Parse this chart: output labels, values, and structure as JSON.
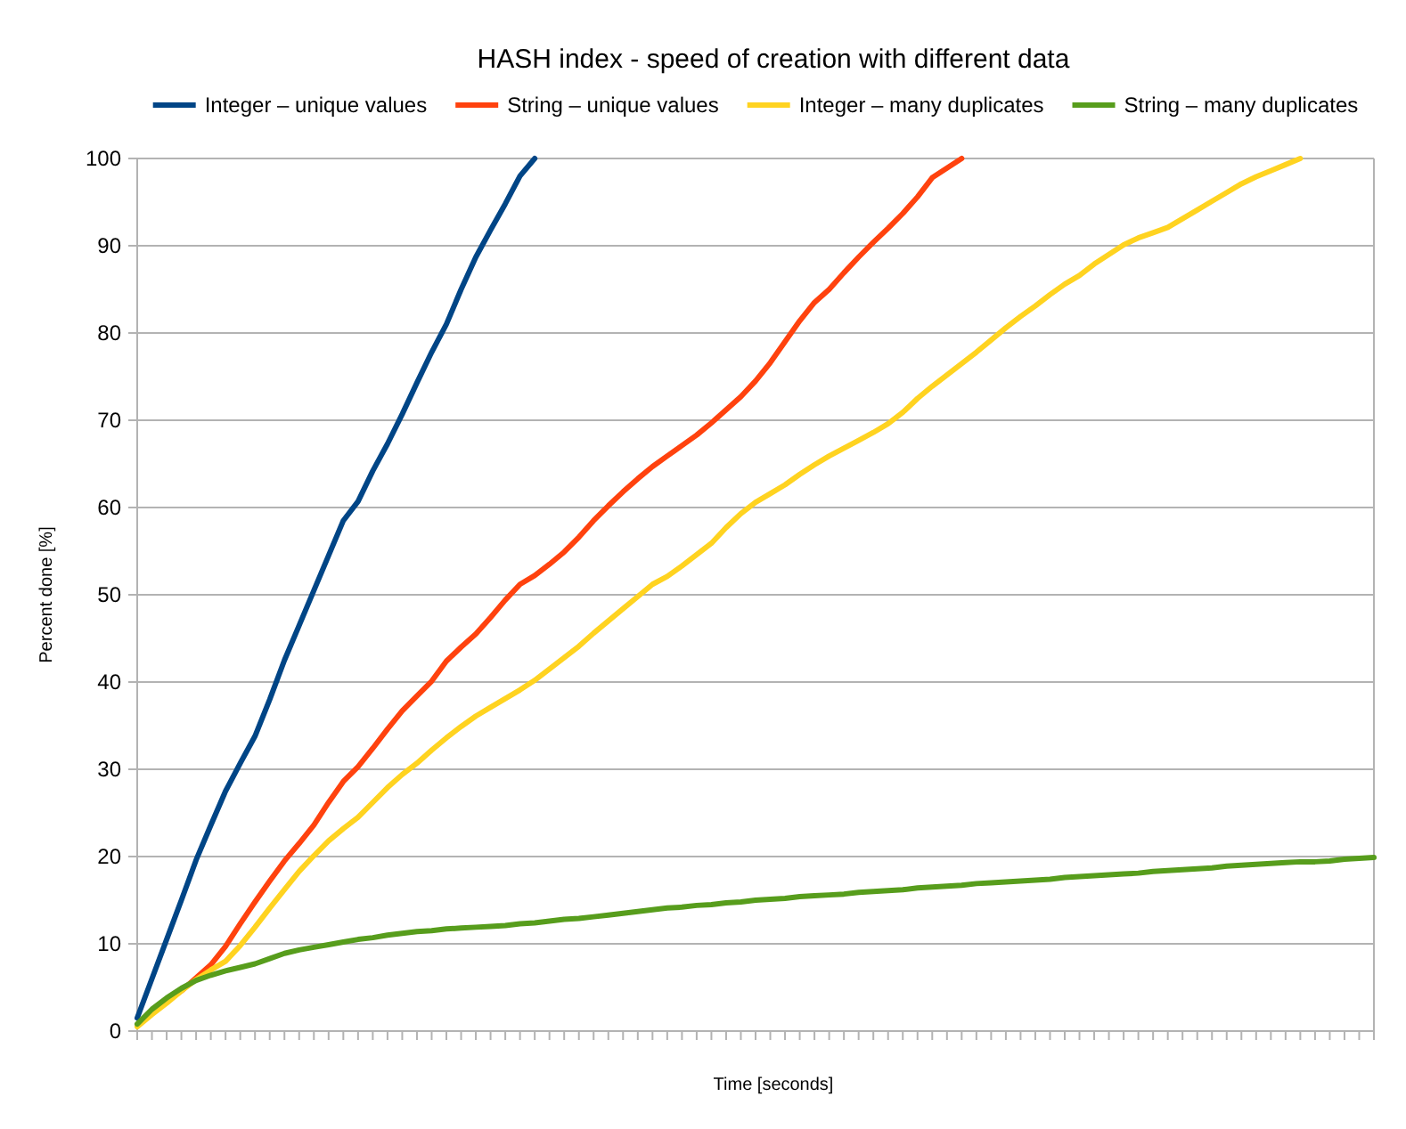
{
  "chart_data": {
    "type": "line",
    "title": "HASH index - speed of creation with different data",
    "xlabel": "Time [seconds]",
    "ylabel": "Percent done [%]",
    "categories": [
      null,
      null,
      null,
      null,
      null,
      null,
      null,
      null,
      null,
      null,
      null,
      null,
      null,
      null,
      null,
      null,
      null,
      null,
      null,
      null,
      null,
      null,
      null,
      null,
      null,
      null,
      null,
      null,
      null,
      null,
      null,
      null,
      null,
      null,
      null,
      null,
      null,
      null,
      null,
      null,
      null,
      null,
      null,
      null,
      null,
      null,
      null,
      null,
      null,
      null,
      null,
      null,
      null,
      null,
      null,
      null,
      null,
      null,
      null,
      null,
      null,
      null,
      null,
      null,
      null,
      null,
      null,
      null,
      null,
      null,
      null,
      null,
      null,
      null,
      null,
      null,
      null,
      null,
      null,
      null,
      null,
      null,
      null,
      null,
      null
    ],
    "series": [
      {
        "name": "Integer – unique values",
        "color": "#004586",
        "values": [
          1.5,
          6,
          10.5,
          15,
          19.6,
          23.6,
          27.5,
          30.7,
          33.8,
          38,
          42.5,
          46.5,
          50.5,
          54.5,
          58.5,
          60.7,
          64.2,
          67.3,
          70.7,
          74.3,
          77.8,
          81,
          85,
          88.7,
          91.8,
          94.8,
          98,
          100,
          null,
          null,
          null,
          null,
          null,
          null,
          null,
          null,
          null,
          null,
          null,
          null,
          null,
          null,
          null,
          null,
          null,
          null,
          null,
          null,
          null,
          null,
          null,
          null,
          null,
          null,
          null,
          null,
          null,
          null,
          null,
          null,
          null,
          null,
          null,
          null,
          null,
          null,
          null,
          null,
          null,
          null,
          null,
          null,
          null,
          null,
          null,
          null,
          null,
          null,
          null,
          null,
          null,
          null,
          null,
          null,
          null
        ]
      },
      {
        "name": "String – unique values",
        "color": "#ff420e",
        "values": [
          null,
          null,
          3.4,
          4.6,
          6.1,
          7.6,
          9.7,
          12.3,
          14.8,
          17.2,
          19.5,
          21.5,
          23.6,
          26.2,
          28.6,
          30.3,
          32.4,
          34.6,
          36.7,
          38.4,
          40.1,
          42.4,
          44,
          45.5,
          47.4,
          49.4,
          51.2,
          52.2,
          53.5,
          54.9,
          56.6,
          58.5,
          60.2,
          61.8,
          63.3,
          64.7,
          65.9,
          67.1,
          68.3,
          69.7,
          71.2,
          72.7,
          74.5,
          76.6,
          79,
          81.4,
          83.5,
          85,
          86.9,
          88.7,
          90.4,
          92,
          93.7,
          95.6,
          97.8,
          98.9,
          100,
          null,
          null,
          null,
          null,
          null,
          null,
          null,
          null,
          null,
          null,
          null,
          null,
          null,
          null,
          null,
          null,
          null,
          null,
          null,
          null,
          null,
          null,
          null,
          null,
          null,
          null,
          null,
          null
        ]
      },
      {
        "name": "Integer – many duplicates",
        "color": "#ffd320",
        "values": [
          0.5,
          1.9,
          3.2,
          4.6,
          5.9,
          7,
          8,
          9.8,
          11.9,
          14.1,
          16.2,
          18.3,
          20.1,
          21.8,
          23.2,
          24.5,
          26.2,
          27.9,
          29.4,
          30.7,
          32.2,
          33.6,
          34.9,
          36.1,
          37.1,
          38.1,
          39.1,
          40.2,
          41.5,
          42.8,
          44.1,
          45.6,
          47,
          48.4,
          49.8,
          51.2,
          52.1,
          53.3,
          54.6,
          55.9,
          57.7,
          59.3,
          60.6,
          61.6,
          62.6,
          63.8,
          64.9,
          65.9,
          66.8,
          67.7,
          68.6,
          69.6,
          70.9,
          72.5,
          73.9,
          75.2,
          76.5,
          77.8,
          79.2,
          80.6,
          81.9,
          83.1,
          84.4,
          85.6,
          86.6,
          87.9,
          89,
          90.1,
          90.9,
          91.5,
          92.1,
          93.1,
          94.1,
          95.1,
          96.1,
          97.1,
          97.9,
          98.6,
          99.3,
          100,
          null,
          null,
          null,
          null,
          null
        ]
      },
      {
        "name": "String – many duplicates",
        "color": "#579d1c",
        "values": [
          0.8,
          2.5,
          3.8,
          4.9,
          5.8,
          6.4,
          6.9,
          7.3,
          7.7,
          8.3,
          8.9,
          9.3,
          9.6,
          9.9,
          10.2,
          10.5,
          10.7,
          11,
          11.2,
          11.4,
          11.5,
          11.7,
          11.8,
          11.9,
          12,
          12.1,
          12.3,
          12.4,
          12.6,
          12.8,
          12.9,
          13.1,
          13.3,
          13.5,
          13.7,
          13.9,
          14.1,
          14.2,
          14.4,
          14.5,
          14.7,
          14.8,
          15,
          15.1,
          15.2,
          15.4,
          15.5,
          15.6,
          15.7,
          15.9,
          16,
          16.1,
          16.2,
          16.4,
          16.5,
          16.6,
          16.7,
          16.9,
          17,
          17.1,
          17.2,
          17.3,
          17.4,
          17.6,
          17.7,
          17.8,
          17.9,
          18,
          18.1,
          18.3,
          18.4,
          18.5,
          18.6,
          18.7,
          18.9,
          19,
          19.1,
          19.2,
          19.3,
          19.4,
          19.4,
          19.5,
          19.7,
          19.8,
          19.9
        ]
      }
    ],
    "ylim": [
      0,
      100
    ],
    "yticks": [
      0,
      10,
      20,
      30,
      40,
      50,
      60,
      70,
      80,
      90,
      100
    ],
    "grid": "y",
    "legend": "top",
    "marker": "none",
    "line_style": "solid"
  }
}
